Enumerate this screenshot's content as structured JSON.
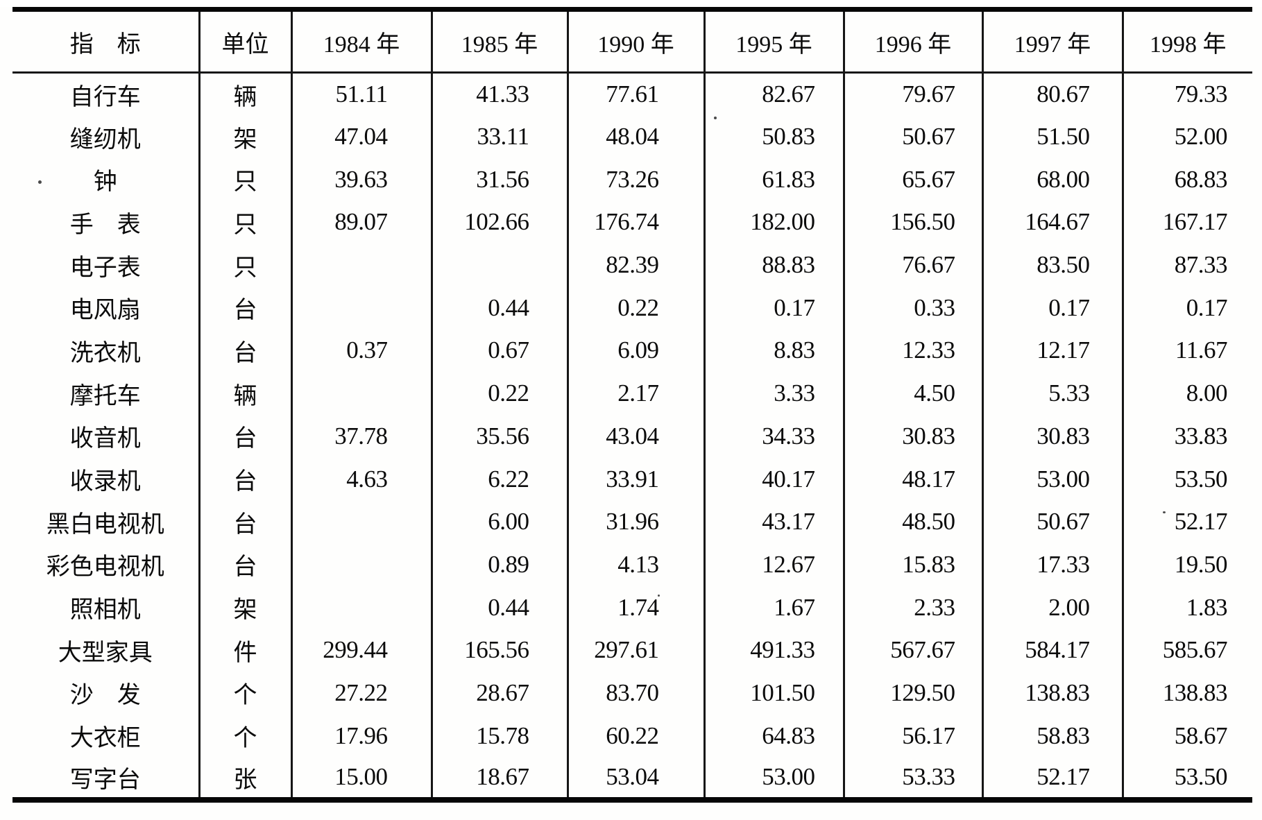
{
  "table": {
    "header": {
      "indicator": "指　标",
      "unit": "单位",
      "years": [
        "1984 年",
        "1985 年",
        "1990 年",
        "1995 年",
        "1996 年",
        "1997 年",
        "1998 年"
      ]
    },
    "rows": [
      {
        "indicator": "自行车",
        "unit": "辆",
        "values": [
          "51.11",
          "41.33",
          "77.61",
          "82.67",
          "79.67",
          "80.67",
          "79.33"
        ]
      },
      {
        "indicator": "缝纫机",
        "unit": "架",
        "values": [
          "47.04",
          "33.11",
          "48.04",
          "50.83",
          "50.67",
          "51.50",
          "52.00"
        ]
      },
      {
        "indicator": "钟",
        "unit": "只",
        "values": [
          "39.63",
          "31.56",
          "73.26",
          "61.83",
          "65.67",
          "68.00",
          "68.83"
        ]
      },
      {
        "indicator": "手　表",
        "unit": "只",
        "values": [
          "89.07",
          "102.66",
          "176.74",
          "182.00",
          "156.50",
          "164.67",
          "167.17"
        ]
      },
      {
        "indicator": "电子表",
        "unit": "只",
        "values": [
          "",
          "",
          "82.39",
          "88.83",
          "76.67",
          "83.50",
          "87.33"
        ]
      },
      {
        "indicator": "电风扇",
        "unit": "台",
        "values": [
          "",
          "0.44",
          "0.22",
          "0.17",
          "0.33",
          "0.17",
          "0.17"
        ]
      },
      {
        "indicator": "洗衣机",
        "unit": "台",
        "values": [
          "0.37",
          "0.67",
          "6.09",
          "8.83",
          "12.33",
          "12.17",
          "11.67"
        ]
      },
      {
        "indicator": "摩托车",
        "unit": "辆",
        "values": [
          "",
          "0.22",
          "2.17",
          "3.33",
          "4.50",
          "5.33",
          "8.00"
        ]
      },
      {
        "indicator": "收音机",
        "unit": "台",
        "values": [
          "37.78",
          "35.56",
          "43.04",
          "34.33",
          "30.83",
          "30.83",
          "33.83"
        ]
      },
      {
        "indicator": "收录机",
        "unit": "台",
        "values": [
          "4.63",
          "6.22",
          "33.91",
          "40.17",
          "48.17",
          "53.00",
          "53.50"
        ]
      },
      {
        "indicator": "黑白电视机",
        "unit": "台",
        "values": [
          "",
          "6.00",
          "31.96",
          "43.17",
          "48.50",
          "50.67",
          "52.17"
        ]
      },
      {
        "indicator": "彩色电视机",
        "unit": "台",
        "values": [
          "",
          "0.89",
          "4.13",
          "12.67",
          "15.83",
          "17.33",
          "19.50"
        ]
      },
      {
        "indicator": "照相机",
        "unit": "架",
        "values": [
          "",
          "0.44",
          "1.74",
          "1.67",
          "2.33",
          "2.00",
          "1.83"
        ]
      },
      {
        "indicator": "大型家具",
        "unit": "件",
        "values": [
          "299.44",
          "165.56",
          "297.61",
          "491.33",
          "567.67",
          "584.17",
          "585.67"
        ]
      },
      {
        "indicator": "沙　发",
        "unit": "个",
        "values": [
          "27.22",
          "28.67",
          "83.70",
          "101.50",
          "129.50",
          "138.83",
          "138.83"
        ]
      },
      {
        "indicator": "大衣柜",
        "unit": "个",
        "values": [
          "17.96",
          "15.78",
          "60.22",
          "64.83",
          "56.17",
          "58.83",
          "58.67"
        ]
      },
      {
        "indicator": "写字台",
        "unit": "张",
        "values": [
          "15.00",
          "18.67",
          "53.04",
          "53.00",
          "53.33",
          "52.17",
          "53.50"
        ]
      }
    ]
  }
}
